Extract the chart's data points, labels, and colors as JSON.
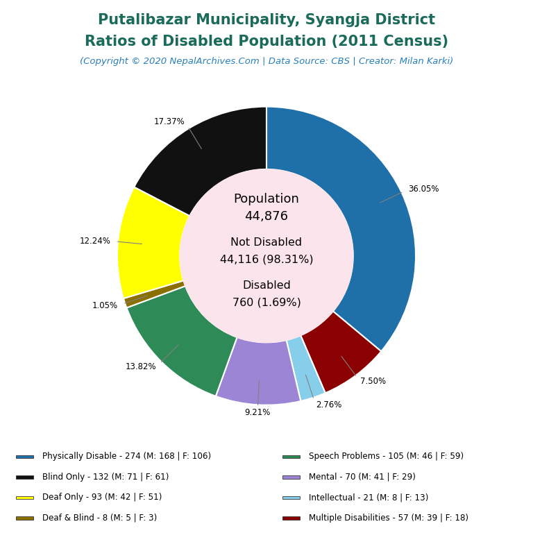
{
  "title_line1": "Putalibazar Municipality, Syangja District",
  "title_line2": "Ratios of Disabled Population (2011 Census)",
  "subtitle": "(Copyright © 2020 NepalArchives.Com | Data Source: CBS | Creator: Milan Karki)",
  "title_color": "#1a6b5a",
  "subtitle_color": "#2980b9",
  "center_bg": "#fce4ec",
  "slices": [
    {
      "label": "Physically Disable - 274 (M: 168 | F: 106)",
      "value": 274,
      "pct": 36.05,
      "color": "#1f6fa8"
    },
    {
      "label": "Multiple Disabilities - 57 (M: 39 | F: 18)",
      "value": 57,
      "pct": 7.5,
      "color": "#8b0000"
    },
    {
      "label": "Intellectual - 21 (M: 8 | F: 13)",
      "value": 21,
      "pct": 2.76,
      "color": "#87ceeb"
    },
    {
      "label": "Mental - 70 (M: 41 | F: 29)",
      "value": 70,
      "pct": 9.21,
      "color": "#9b85d4"
    },
    {
      "label": "Speech Problems - 105 (M: 46 | F: 59)",
      "value": 105,
      "pct": 13.82,
      "color": "#2e8b57"
    },
    {
      "label": "Deaf & Blind - 8 (M: 5 | F: 3)",
      "value": 8,
      "pct": 1.05,
      "color": "#8b7000"
    },
    {
      "label": "Deaf Only - 93 (M: 42 | F: 51)",
      "value": 93,
      "pct": 12.24,
      "color": "#ffff00"
    },
    {
      "label": "Blind Only - 132 (M: 71 | F: 61)",
      "value": 132,
      "pct": 17.37,
      "color": "#111111"
    }
  ],
  "legend_order": [
    {
      "label": "Physically Disable - 274 (M: 168 | F: 106)",
      "color": "#1f6fa8"
    },
    {
      "label": "Blind Only - 132 (M: 71 | F: 61)",
      "color": "#111111"
    },
    {
      "label": "Deaf Only - 93 (M: 42 | F: 51)",
      "color": "#ffff00"
    },
    {
      "label": "Deaf & Blind - 8 (M: 5 | F: 3)",
      "color": "#8b7000"
    },
    {
      "label": "Speech Problems - 105 (M: 46 | F: 59)",
      "color": "#2e8b57"
    },
    {
      "label": "Mental - 70 (M: 41 | F: 29)",
      "color": "#9b85d4"
    },
    {
      "label": "Intellectual - 21 (M: 8 | F: 13)",
      "color": "#87ceeb"
    },
    {
      "label": "Multiple Disabilities - 57 (M: 39 | F: 18)",
      "color": "#8b0000"
    }
  ],
  "bg_color": "#ffffff"
}
